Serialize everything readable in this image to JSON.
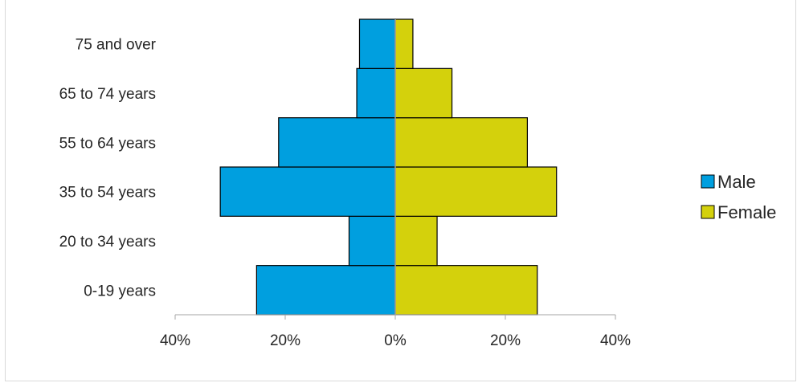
{
  "chart_data": {
    "type": "bar",
    "orientation": "horizontal",
    "categories": [
      "0-19 years",
      "20 to 34 years",
      "35 to 54 years",
      "55 to 64 years",
      "65 to 74 years",
      "75 and over"
    ],
    "series": [
      {
        "name": "Male",
        "color": "#009fdf",
        "values": [
          25.2,
          8.4,
          31.8,
          21.2,
          7.0,
          6.5
        ]
      },
      {
        "name": "Female",
        "color": "#d4d10c",
        "values": [
          25.8,
          7.6,
          29.3,
          24.0,
          10.3,
          3.2
        ]
      }
    ],
    "xlim": [
      -40,
      40
    ],
    "x_ticks": [
      -40,
      -20,
      0,
      20,
      40
    ],
    "x_tick_labels": [
      "40%",
      "20%",
      "0%",
      "20%",
      "40%"
    ],
    "legend_position": "right",
    "grid": false,
    "title": "",
    "xlabel": "",
    "ylabel": ""
  }
}
